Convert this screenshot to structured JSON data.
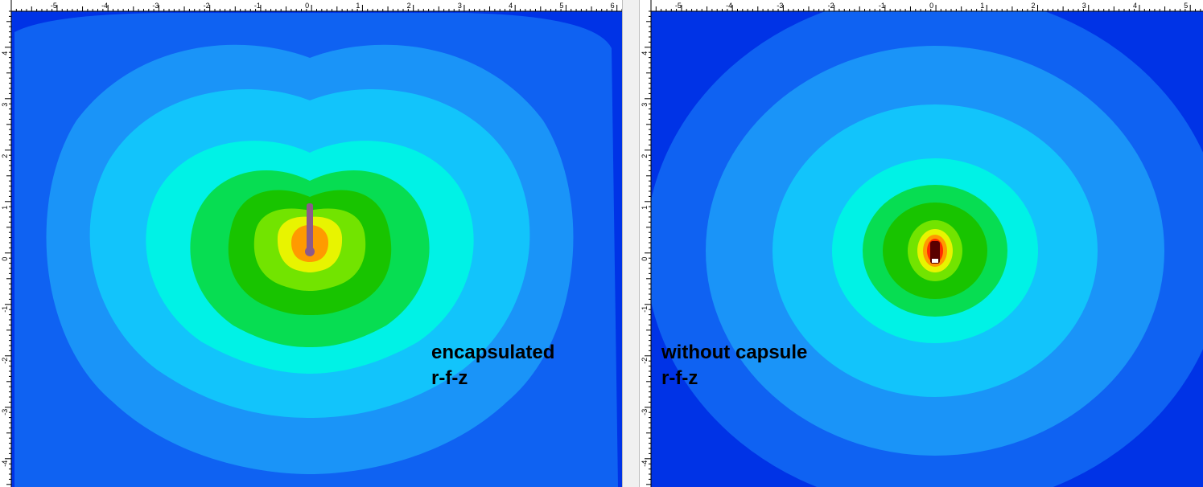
{
  "panels": [
    {
      "id": "encapsulated",
      "caption_line1": "encapsulated",
      "caption_line2": "r-f-z",
      "x_range": [
        -5.9,
        6.1
      ],
      "y_range": [
        -4.55,
        4.7
      ],
      "x_ticks": [
        -5,
        -4,
        -3,
        -2,
        -1,
        0,
        1,
        2,
        3,
        4,
        5,
        6
      ],
      "y_ticks": [
        4,
        3,
        2,
        1,
        0,
        -1,
        -2,
        -3,
        -4
      ],
      "has_source_rod": true
    },
    {
      "id": "without-capsule",
      "caption_line1": "without capsule",
      "caption_line2": "r-f-z",
      "x_range": [
        -5.6,
        5.25
      ],
      "y_range": [
        -4.55,
        4.7
      ],
      "x_ticks": [
        -5,
        -4,
        -3,
        -2,
        -1,
        0,
        1,
        2,
        3,
        4,
        5
      ],
      "y_ticks": [
        4,
        3,
        2,
        1,
        0,
        -1,
        -2,
        -3,
        -4
      ],
      "has_source_rod": false
    }
  ],
  "colors": {
    "background_blue": "#0033e6",
    "level_1": "#0f62f2",
    "level_2": "#1a94f8",
    "level_3": "#12c4fb",
    "level_4": "#00f2e6",
    "level_5": "#07dd52",
    "level_6": "#18c400",
    "level_7": "#72e400",
    "level_8": "#e8f400",
    "level_9": "#ff9a00",
    "level_10": "#ff2a00",
    "hot_core": "#5a0000",
    "rod": "#8c5a8a"
  }
}
